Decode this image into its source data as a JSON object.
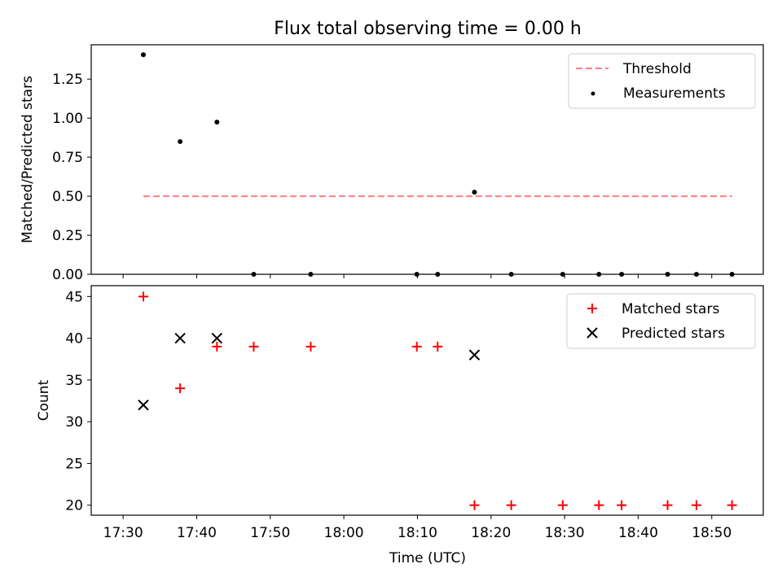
{
  "chart_data": [
    {
      "type": "scatter",
      "title": "Flux total observing time = 0.00 h",
      "xlabel": "",
      "ylabel": "Matched/Predicted stars",
      "ylim": [
        0,
        1.47
      ],
      "yticks": [
        "0.00",
        "0.25",
        "0.50",
        "0.75",
        "1.00",
        "1.25"
      ],
      "legend_position": "top-right",
      "threshold": {
        "name": "Threshold",
        "value": 0.5,
        "x_start": "17:32:45",
        "x_end": "18:52:45",
        "color": "#ff7f7f"
      },
      "series": [
        {
          "name": "Measurements",
          "color": "#000000",
          "x": [
            "17:32:45",
            "17:37:45",
            "17:42:45",
            "17:47:45",
            "17:55:30",
            "18:09:55",
            "18:12:45",
            "18:17:45",
            "18:22:45",
            "18:29:45",
            "18:34:40",
            "18:37:45",
            "18:44:00",
            "18:47:55",
            "18:52:45"
          ],
          "y": [
            1.406,
            0.85,
            0.975,
            0,
            0,
            0,
            0,
            0.526,
            0,
            0,
            0,
            0,
            0,
            0,
            0
          ]
        }
      ]
    },
    {
      "type": "scatter",
      "title": "",
      "xlabel": "Time (UTC)",
      "ylabel": "Count",
      "ylim": [
        18.8,
        46.3
      ],
      "yticks": [
        "20",
        "25",
        "30",
        "35",
        "40",
        "45"
      ],
      "xticks": [
        "17:30",
        "17:40",
        "17:50",
        "18:00",
        "18:10",
        "18:20",
        "18:30",
        "18:40",
        "18:50"
      ],
      "legend_position": "top-right",
      "series": [
        {
          "name": "Matched stars",
          "marker": "+",
          "color": "#ff0000",
          "x": [
            "17:32:45",
            "17:37:45",
            "17:42:45",
            "17:47:45",
            "17:55:30",
            "18:09:55",
            "18:12:45",
            "18:17:45",
            "18:22:45",
            "18:29:45",
            "18:34:40",
            "18:37:45",
            "18:44:00",
            "18:47:55",
            "18:52:45"
          ],
          "y": [
            45,
            34,
            39,
            39,
            39,
            39,
            39,
            20,
            20,
            20,
            20,
            20,
            20,
            20,
            20
          ]
        },
        {
          "name": "Predicted stars",
          "marker": "x",
          "color": "#000000",
          "x": [
            "17:32:45",
            "17:37:45",
            "17:42:45",
            "18:17:45"
          ],
          "y": [
            32,
            40,
            40,
            38
          ]
        }
      ]
    }
  ]
}
